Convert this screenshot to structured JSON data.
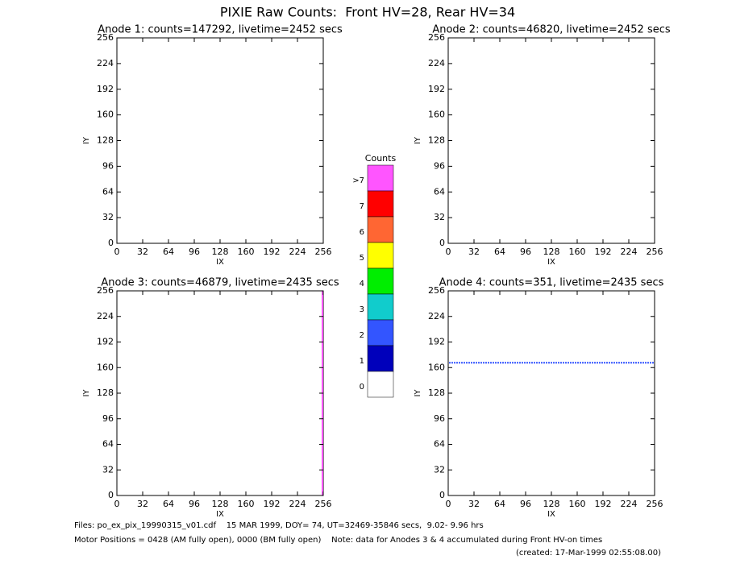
{
  "title": "PIXIE Raw Counts:  Front HV=28, Rear HV=34",
  "panels": [
    {
      "title": "Anode 1: counts=147292, livetime=2452 secs",
      "xlabel": "IX",
      "ylabel": "IY",
      "xlim": [
        0,
        256
      ],
      "ylim": [
        0,
        256
      ],
      "xticks": [
        0,
        32,
        64,
        96,
        128,
        160,
        192,
        224,
        256
      ],
      "yticks": [
        0,
        32,
        64,
        96,
        128,
        160,
        192,
        224,
        256
      ]
    },
    {
      "title": "Anode 2: counts=46820, livetime=2452 secs",
      "xlabel": "IX",
      "ylabel": "IY",
      "xlim": [
        0,
        256
      ],
      "ylim": [
        0,
        256
      ],
      "xticks": [
        0,
        32,
        64,
        96,
        128,
        160,
        192,
        224,
        256
      ],
      "yticks": [
        0,
        32,
        64,
        96,
        128,
        160,
        192,
        224,
        256
      ]
    },
    {
      "title": "Anode 3: counts=46879, livetime=2435 secs",
      "xlabel": "IX",
      "ylabel": "IY",
      "xlim": [
        0,
        256
      ],
      "ylim": [
        0,
        256
      ],
      "xticks": [
        0,
        32,
        64,
        96,
        128,
        160,
        192,
        224,
        256
      ],
      "yticks": [
        0,
        32,
        64,
        96,
        128,
        160,
        192,
        224,
        256
      ]
    },
    {
      "title": "Anode 4: counts=351, livetime=2435 secs",
      "xlabel": "IX",
      "ylabel": "IY",
      "xlim": [
        0,
        256
      ],
      "ylim": [
        0,
        256
      ],
      "xticks": [
        0,
        32,
        64,
        96,
        128,
        160,
        192,
        224,
        256
      ],
      "yticks": [
        0,
        32,
        64,
        96,
        128,
        160,
        192,
        224,
        256
      ],
      "band_iy": 166
    }
  ],
  "colorbar": {
    "title": "Counts",
    "levels": [
      {
        "label": ">7",
        "color": "#ff55ff"
      },
      {
        "label": "7",
        "color": "#ff0000"
      },
      {
        "label": "6",
        "color": "#ff6633"
      },
      {
        "label": "5",
        "color": "#ffff00"
      },
      {
        "label": "4",
        "color": "#00ee00"
      },
      {
        "label": "3",
        "color": "#11cccc"
      },
      {
        "label": "2",
        "color": "#3355ff"
      },
      {
        "label": "1",
        "color": "#0000bb"
      },
      {
        "label": "0",
        "color": "#ffffff"
      }
    ]
  },
  "footer": {
    "files": "Files: po_ex_pix_19990315_v01.cdf    15 MAR 1999, DOY= 74, UT=32469-35846 secs,  9.02- 9.96 hrs",
    "motor": "Motor Positions = 0428 (AM fully open), 0000 (BM fully open)    Note: data for Anodes 3 & 4 accumulated during Front HV-on times",
    "created": "(created: 17-Mar-1999 02:55:08.00)"
  }
}
